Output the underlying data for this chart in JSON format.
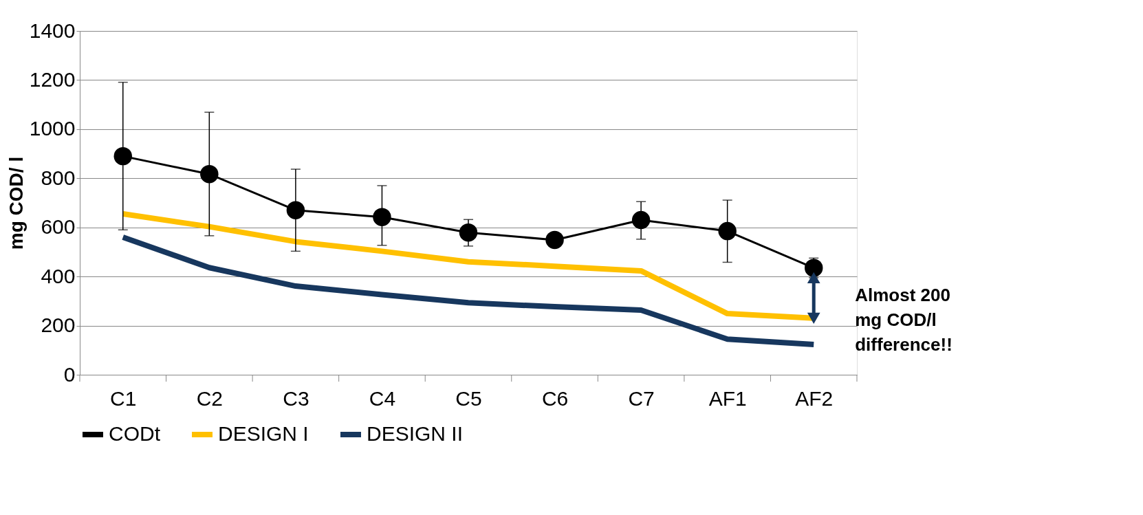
{
  "chart_data": {
    "type": "line",
    "ylabel": "mg COD/ l",
    "categories": [
      "C1",
      "C2",
      "C3",
      "C4",
      "C5",
      "C6",
      "C7",
      "AF1",
      "AF2"
    ],
    "series": [
      {
        "name": "CODt",
        "color": "#000000",
        "marker": "circle",
        "values": [
          890,
          817,
          670,
          642,
          579,
          549,
          630,
          585,
          435
        ],
        "errors": [
          [
            590,
            1191
          ],
          [
            566,
            1069
          ],
          [
            503,
            837
          ],
          [
            527,
            770
          ],
          [
            524,
            632
          ],
          null,
          [
            552,
            705
          ],
          [
            458,
            711
          ],
          [
            395,
            475
          ]
        ]
      },
      {
        "name": "DESIGN I",
        "color": "#ffc000",
        "marker": "none",
        "values": [
          655,
          603,
          542,
          503,
          460,
          442,
          423,
          249,
          230
        ]
      },
      {
        "name": "DESIGN II",
        "color": "#17375e",
        "marker": "none",
        "values": [
          560,
          436,
          361,
          326,
          293,
          277,
          263,
          145,
          123
        ]
      }
    ],
    "ylim": [
      0,
      1400
    ],
    "yticks": [
      0,
      200,
      400,
      600,
      800,
      1000,
      1200,
      1400
    ],
    "grid": "y",
    "legend": "bottom",
    "annotations": [
      "Almost 200 mg COD/l difference!!"
    ]
  }
}
